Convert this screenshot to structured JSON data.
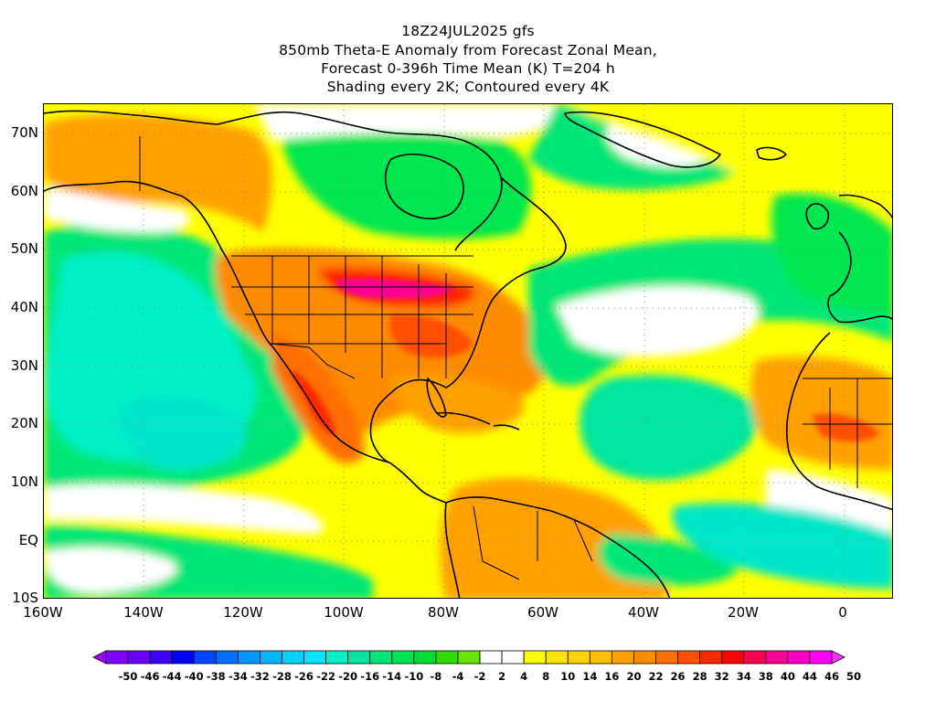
{
  "titles": {
    "line1": "18Z24JUL2025 gfs",
    "line2": "850mb Theta-E Anomaly from Forecast Zonal Mean,",
    "line3": "Forecast 0-396h Time Mean (K) T=204 h",
    "line4": "Shading every 2K; Contoured every 4K"
  },
  "map": {
    "lon_range": [
      -160,
      10
    ],
    "lat_range": [
      -10,
      75
    ],
    "lat_ticks": [
      "70N",
      "60N",
      "50N",
      "40N",
      "30N",
      "20N",
      "10N",
      "EQ",
      "10S"
    ],
    "lon_ticks": [
      "160W",
      "140W",
      "120W",
      "100W",
      "80W",
      "60W",
      "40W",
      "20W",
      "0"
    ],
    "gridlines": "dotted"
  },
  "colorbar": {
    "labels": [
      "-50",
      "-46",
      "-44",
      "-40",
      "-38",
      "-34",
      "-32",
      "-28",
      "-26",
      "-22",
      "-20",
      "-16",
      "-14",
      "-10",
      "-8",
      "-4",
      "-2",
      "2",
      "4",
      "8",
      "10",
      "14",
      "16",
      "20",
      "22",
      "26",
      "28",
      "32",
      "34",
      "38",
      "40",
      "44",
      "46",
      "50"
    ],
    "colors": [
      "#a000ff",
      "#8200ff",
      "#6a00ff",
      "#3c00ff",
      "#0000ff",
      "#0046ff",
      "#0070ff",
      "#0096ff",
      "#00b4ff",
      "#00d2ff",
      "#00e6ff",
      "#00f0c8",
      "#00e6a0",
      "#00e678",
      "#00e650",
      "#00dc32",
      "#32dc00",
      "#64e600",
      "#ffffff",
      "#ffffff",
      "#ffff00",
      "#ffe600",
      "#ffd200",
      "#ffbe00",
      "#ffa000",
      "#ff8c00",
      "#ff6e00",
      "#ff5000",
      "#ff2800",
      "#ff0000",
      "#ff0050",
      "#ff0096",
      "#ff00c8",
      "#ff00ff",
      "#ff32ff"
    ]
  }
}
